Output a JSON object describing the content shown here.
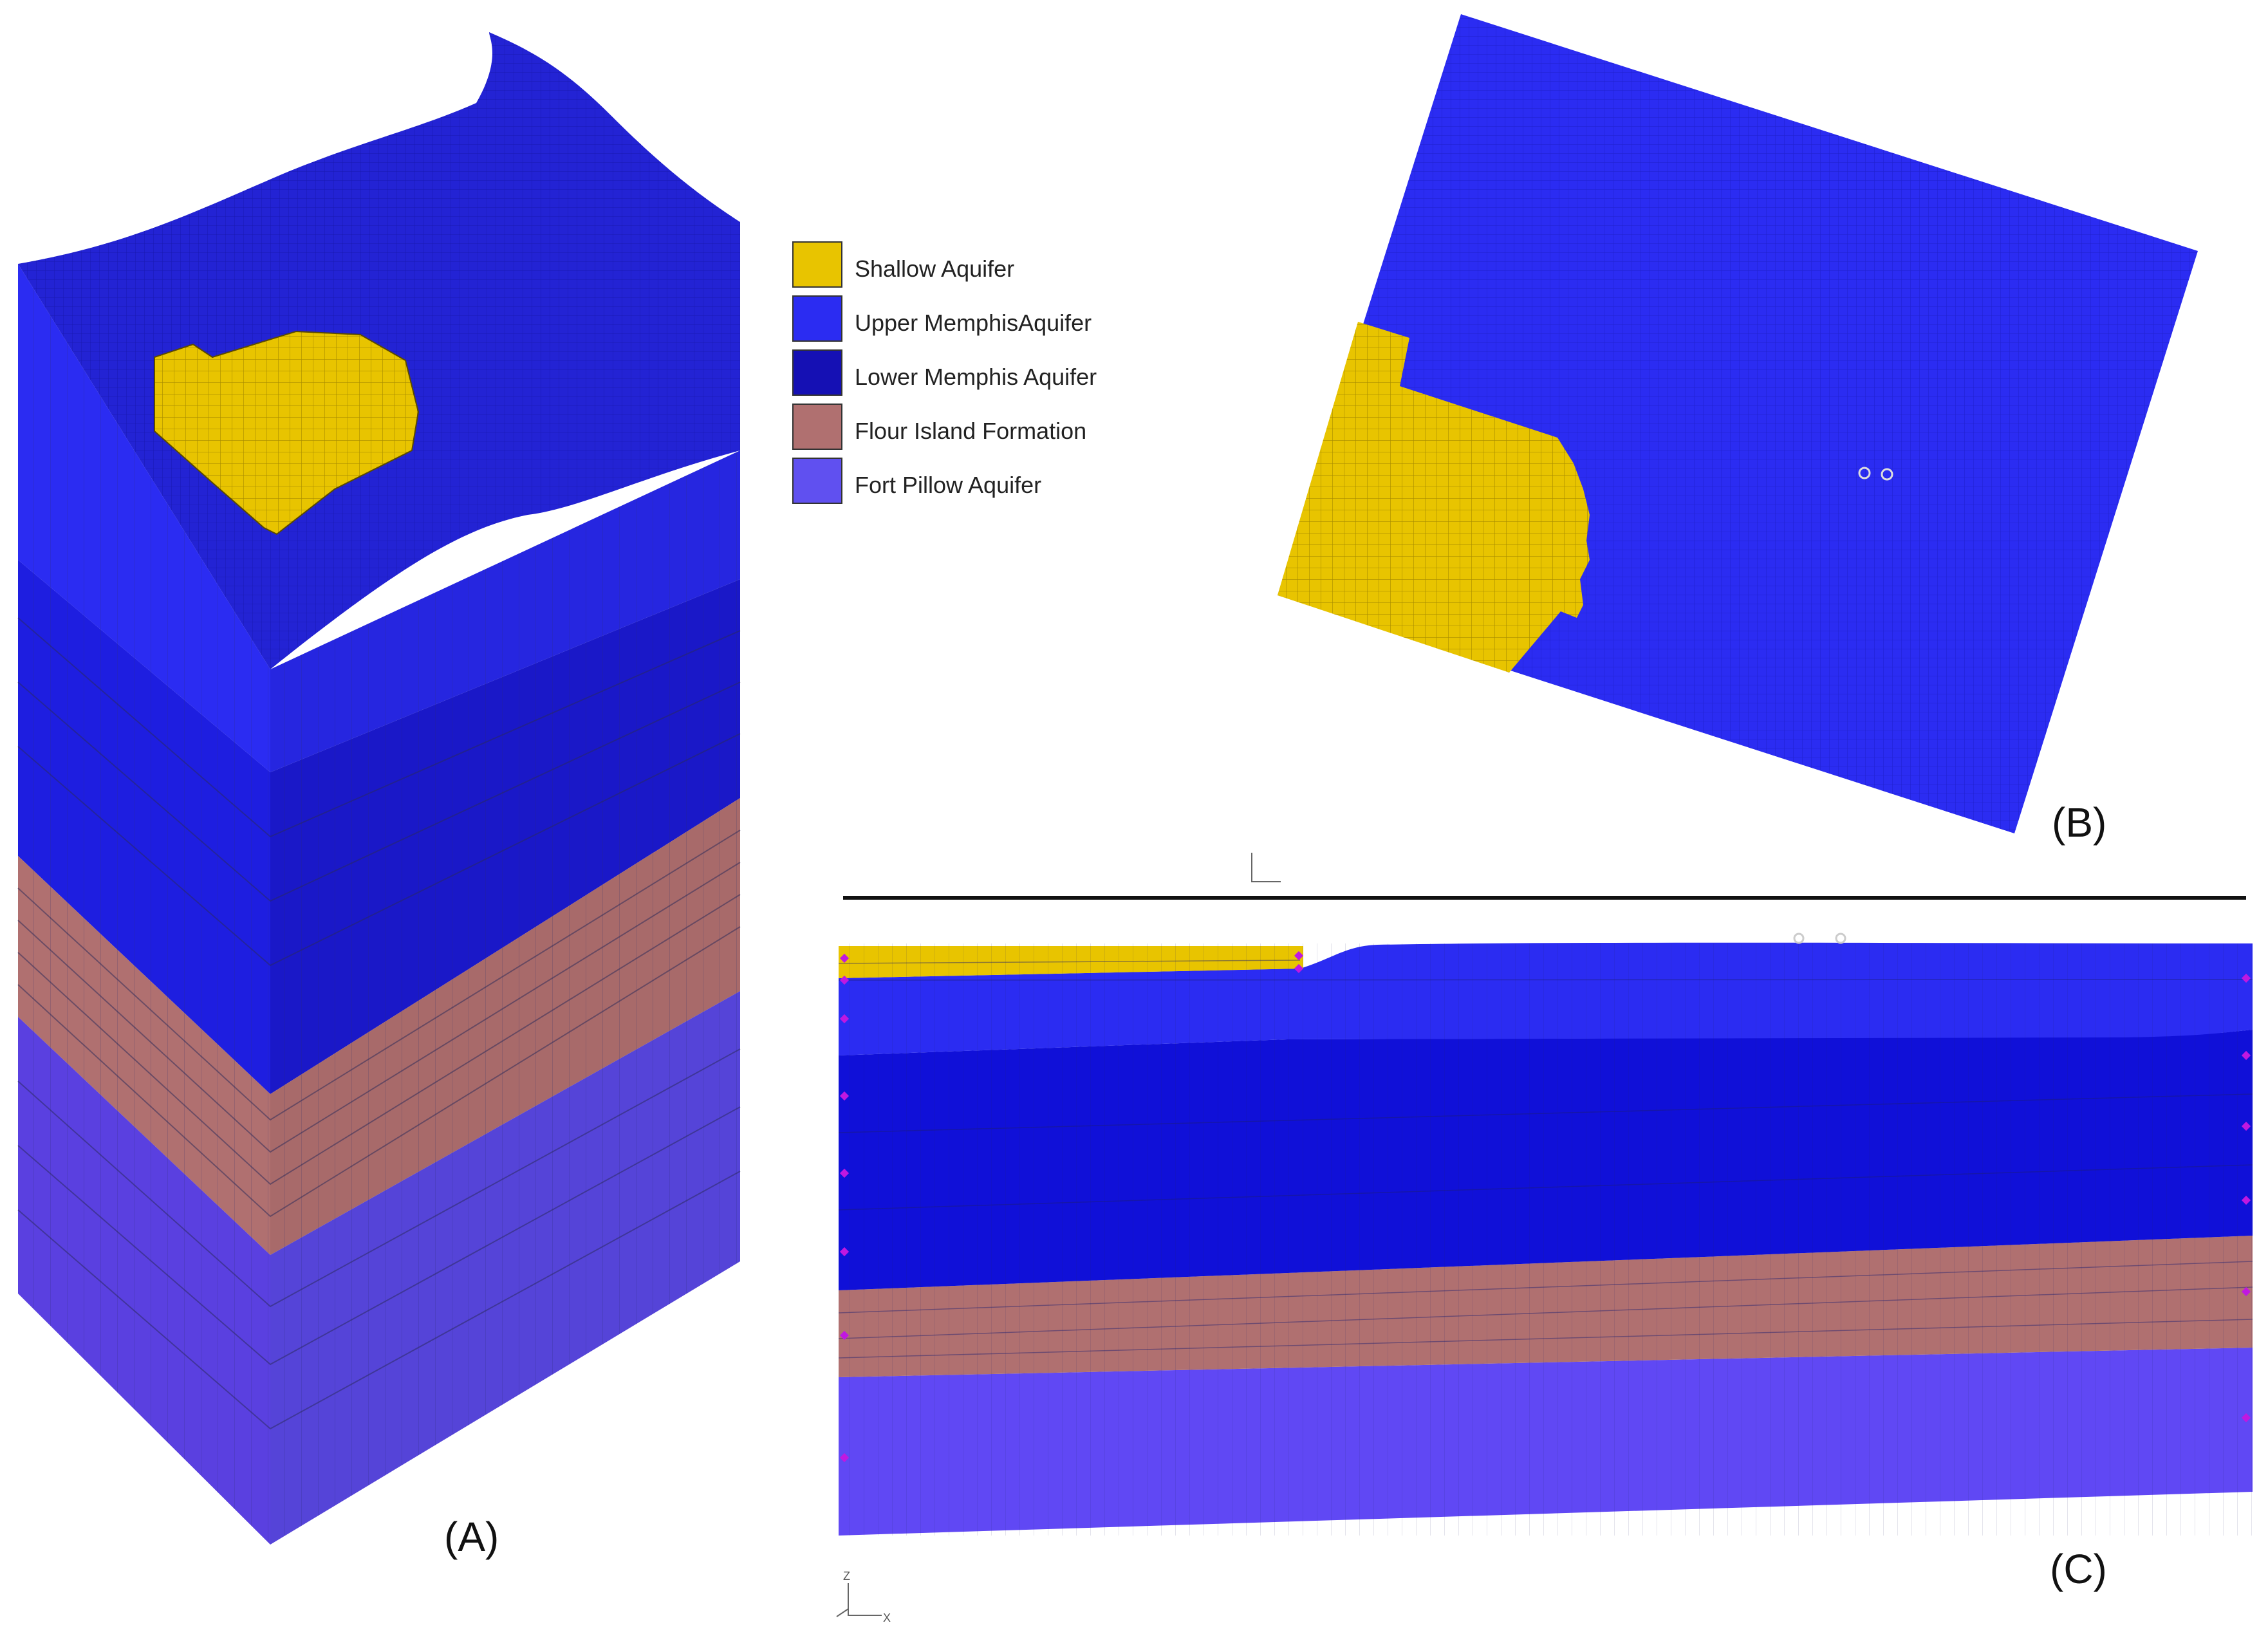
{
  "legend": {
    "items": [
      {
        "label": "Shallow Aquifer",
        "color": "#e8c400"
      },
      {
        "label": "Upper MemphisAquifer",
        "color": "#2b2cf2"
      },
      {
        "label": "Lower Memphis Aquifer",
        "color": "#1510b4"
      },
      {
        "label": "Flour Island Formation",
        "color": "#b07070"
      },
      {
        "label": "Fort Pillow Aquifer",
        "color": "#6050f0"
      }
    ]
  },
  "panels": {
    "a": "(A)",
    "b": "(B)",
    "c": "(C)"
  },
  "axes_triad": {
    "z": "Z",
    "x": "X"
  }
}
